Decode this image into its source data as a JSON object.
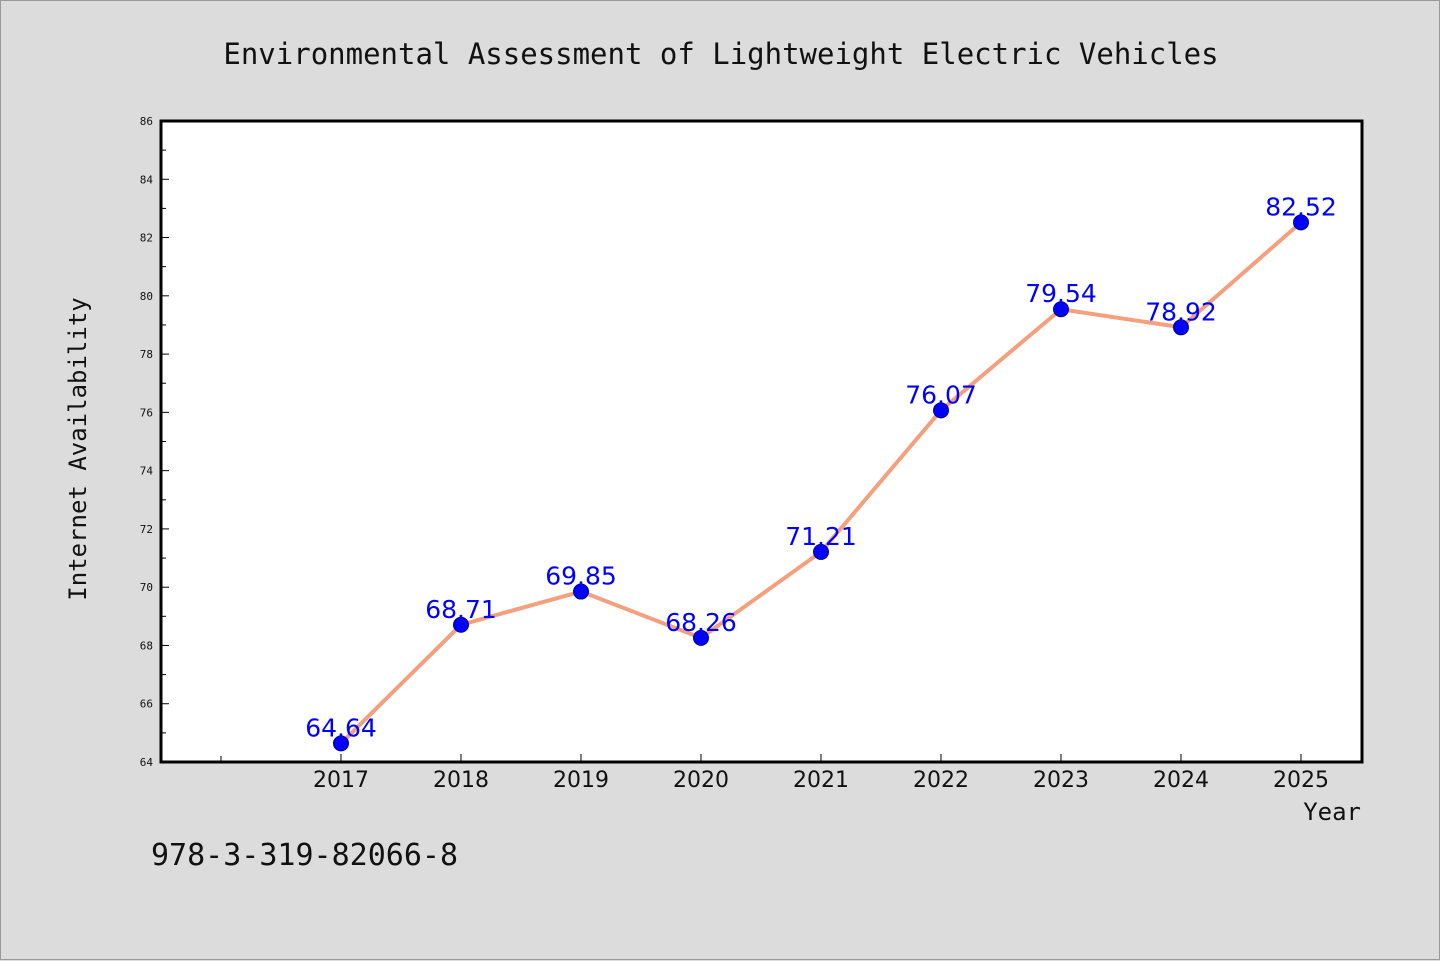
{
  "chart_data": {
    "type": "line",
    "title": "Environmental Assessment of Lightweight Electric Vehicles",
    "xlabel": "Year",
    "ylabel": "Internet Availability",
    "categories": [
      "2017",
      "2018",
      "2019",
      "2020",
      "2021",
      "2022",
      "2023",
      "2024",
      "2025"
    ],
    "series": [
      {
        "values": [
          64.64,
          68.71,
          69.85,
          68.26,
          71.21,
          76.07,
          79.54,
          78.92,
          82.52
        ],
        "data_labels": [
          "64.64",
          "68.71",
          "69.85",
          "68.26",
          "71.21",
          "76.07",
          "79.54",
          "78.92",
          "82.52"
        ]
      }
    ],
    "ylim": [
      64,
      86
    ],
    "yticks": [
      "64",
      "66",
      "68",
      "70",
      "72",
      "74",
      "76",
      "78",
      "80",
      "82",
      "84",
      "86"
    ],
    "grid": false,
    "colors": {
      "line": "#f4a07e",
      "marker": "#0000ff",
      "marker_edge": "#00008b",
      "label": "#0000ff",
      "background": "#dcdcdc",
      "plot_background": "#ffffff"
    }
  },
  "footer_text": "978-3-319-82066-8"
}
